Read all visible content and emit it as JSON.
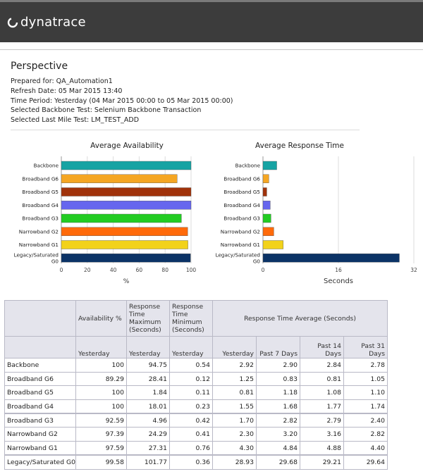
{
  "brand": "dynatrace",
  "report": {
    "title": "Perspective",
    "prepared_for": "Prepared for: QA_Automation1",
    "refresh_date": "Refresh Date: 05 Mar 2015 13:40",
    "time_period": "Time Period:  Yesterday  (04 Mar 2015 00:00 to 05 Mar 2015 00:00)",
    "backbone_test": "Selected Backbone Test:  Selenium Backbone Transaction",
    "last_mile_test": "Selected Last Mile Test:  LM_TEST_ADD"
  },
  "chart_data": [
    {
      "type": "bar",
      "orientation": "horizontal",
      "title": "Average Availability",
      "xlabel": "%",
      "xlim": [
        0,
        100
      ],
      "ticks": [
        0,
        20,
        40,
        60,
        80,
        100
      ],
      "categories": [
        "Backbone",
        "Broadband G6",
        "Broadband G5",
        "Broadband G4",
        "Broadband G3",
        "Narrowband G2",
        "Narrowband G1",
        "Legacy/Saturated G0"
      ],
      "values": [
        100,
        89.29,
        100,
        100,
        92.59,
        97.39,
        97.59,
        99.58
      ],
      "colors": [
        "#16a3a3",
        "#f5a623",
        "#a0320a",
        "#6666ee",
        "#22cc22",
        "#ff6a0a",
        "#f2d21a",
        "#0b3366"
      ]
    },
    {
      "type": "bar",
      "orientation": "horizontal",
      "title": "Average Response Time",
      "xlabel": "Seconds",
      "xlim": [
        0,
        32
      ],
      "ticks": [
        0,
        16,
        32
      ],
      "categories": [
        "Backbone",
        "Broadband G6",
        "Broadband G5",
        "Broadband G4",
        "Broadband G3",
        "Narrowband G2",
        "Narrowband G1",
        "Legacy/Saturated G0"
      ],
      "values": [
        2.92,
        1.25,
        0.81,
        1.55,
        1.7,
        2.3,
        4.3,
        28.93
      ],
      "colors": [
        "#16a3a3",
        "#f5a623",
        "#a0320a",
        "#6666ee",
        "#22cc22",
        "#ff6a0a",
        "#f2d21a",
        "#0b3366"
      ]
    }
  ],
  "table": {
    "headers_top": {
      "availability": "Availability %",
      "rt_max": "Response Time Maximum (Seconds)",
      "rt_min": "Response Time Minimum (Seconds)",
      "rt_avg": "Response Time Average (Seconds)"
    },
    "headers_sub": {
      "yesterday": "Yesterday",
      "past7": "Past 7 Days",
      "past14": "Past 14 Days",
      "past31": "Past 31 Days"
    },
    "rows": [
      {
        "label": "Backbone",
        "avail": "100",
        "max": "94.75",
        "min": "0.54",
        "avg_y": "2.92",
        "p7": "2.90",
        "p14": "2.84",
        "p31": "2.78"
      },
      {
        "label": "Broadband G6",
        "avail": "89.29",
        "max": "28.41",
        "min": "0.12",
        "avg_y": "1.25",
        "p7": "0.83",
        "p14": "0.81",
        "p31": "1.05"
      },
      {
        "label": "Broadband G5",
        "avail": "100",
        "max": "1.84",
        "min": "0.11",
        "avg_y": "0.81",
        "p7": "1.18",
        "p14": "1.08",
        "p31": "1.10"
      },
      {
        "label": "Broadband G4",
        "avail": "100",
        "max": "18.01",
        "min": "0.23",
        "avg_y": "1.55",
        "p7": "1.68",
        "p14": "1.77",
        "p31": "1.74"
      },
      {
        "label": "Broadband G3",
        "avail": "92.59",
        "max": "4.96",
        "min": "0.42",
        "avg_y": "1.70",
        "p7": "2.82",
        "p14": "2.79",
        "p31": "2.40"
      },
      {
        "label": "Narrowband G2",
        "avail": "97.39",
        "max": "24.29",
        "min": "0.41",
        "avg_y": "2.30",
        "p7": "3.20",
        "p14": "3.16",
        "p31": "2.82"
      },
      {
        "label": "Narrowband G1",
        "avail": "97.59",
        "max": "27.31",
        "min": "0.76",
        "avg_y": "4.30",
        "p7": "4.84",
        "p14": "4.88",
        "p31": "4.40"
      },
      {
        "label": "Legacy/Saturated G0",
        "avail": "99.58",
        "max": "101.77",
        "min": "0.36",
        "avg_y": "28.93",
        "p7": "29.68",
        "p14": "29.21",
        "p31": "29.64"
      }
    ]
  }
}
